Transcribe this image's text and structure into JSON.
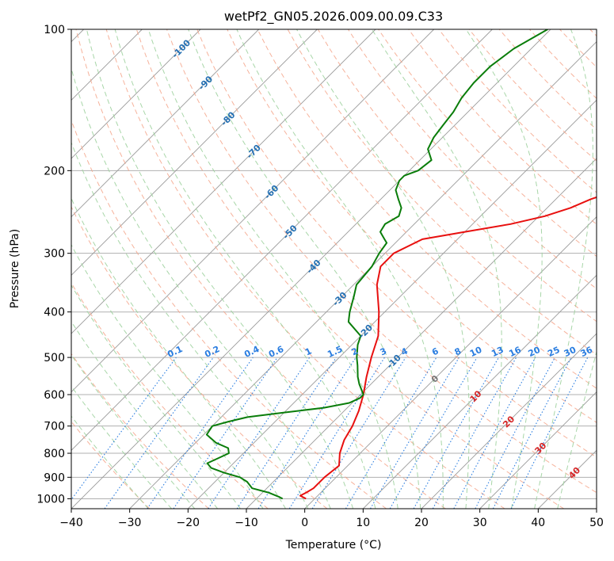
{
  "chart_data": {
    "type": "skew-t",
    "title": "wetPf2_GN05.2026.009.00.09.C33",
    "xlabel": "Temperature (°C)",
    "ylabel": "Pressure (hPa)",
    "xlim": [
      -40,
      50
    ],
    "ylim": [
      1050,
      100
    ],
    "x_ticks": [
      -40,
      -30,
      -20,
      -10,
      0,
      10,
      20,
      30,
      40,
      50
    ],
    "y_ticks": [
      1000,
      900,
      800,
      700,
      600,
      500,
      400,
      300,
      200,
      100
    ],
    "isotherm_labels": [
      -100,
      -90,
      -80,
      -70,
      -60,
      -50,
      -40,
      -30,
      -20,
      -10,
      0,
      10,
      20,
      30,
      40
    ],
    "mixing_ratio_labels": [
      "0.1",
      "0.2",
      "0.4",
      "0.6",
      "1",
      "1.5",
      "2",
      "3",
      "4",
      "6",
      "8",
      "10",
      "13",
      "16",
      "20",
      "25",
      "30",
      "36"
    ],
    "colors": {
      "temperature": "#e8100f",
      "dewpoint": "#0a7d0a",
      "isotherm": "#9a9a9a",
      "dry_adiabat": "#f4a58a",
      "moist_adiabat": "#9fd19f",
      "mixing_ratio": "#2a7de0",
      "isotherm_label_cold": "#2570b3",
      "isotherm_label_warm": "#d62728",
      "isotherm_label_zero": "#777777"
    },
    "series": [
      {
        "name": "Temperature",
        "points": [
          [
            1000,
            -1.5
          ],
          [
            985,
            -3.0
          ],
          [
            970,
            -2.5
          ],
          [
            950,
            -2.0
          ],
          [
            900,
            -2.0
          ],
          [
            850,
            -1.5
          ],
          [
            800,
            -3.5
          ],
          [
            750,
            -5.0
          ],
          [
            700,
            -6.0
          ],
          [
            650,
            -7.5
          ],
          [
            600,
            -9.5
          ],
          [
            550,
            -12.0
          ],
          [
            500,
            -14.5
          ],
          [
            450,
            -17.0
          ],
          [
            400,
            -21.0
          ],
          [
            350,
            -26.0
          ],
          [
            320,
            -28.5
          ],
          [
            300,
            -28.5
          ],
          [
            280,
            -26.0
          ],
          [
            270,
            -20.0
          ],
          [
            260,
            -13.5
          ],
          [
            250,
            -9.0
          ],
          [
            240,
            -6.0
          ],
          [
            230,
            -4.0
          ],
          [
            220,
            -1.0
          ],
          [
            210,
            3.0
          ],
          [
            200,
            6.0
          ],
          [
            190,
            9.0
          ],
          [
            180,
            12.0
          ],
          [
            170,
            14.0
          ],
          [
            160,
            17.0
          ],
          [
            150,
            20.0
          ],
          [
            140,
            23.0
          ],
          [
            130,
            27.0
          ],
          [
            120,
            30.0
          ],
          [
            110,
            33.0
          ],
          [
            100,
            34.0
          ]
        ]
      },
      {
        "name": "Dewpoint",
        "points": [
          [
            1000,
            -5.5
          ],
          [
            990,
            -6.5
          ],
          [
            970,
            -9.0
          ],
          [
            950,
            -12.5
          ],
          [
            920,
            -14.5
          ],
          [
            900,
            -16.5
          ],
          [
            880,
            -20.0
          ],
          [
            860,
            -23.0
          ],
          [
            840,
            -24.5
          ],
          [
            820,
            -23.5
          ],
          [
            800,
            -22.5
          ],
          [
            780,
            -23.5
          ],
          [
            760,
            -26.5
          ],
          [
            730,
            -29.5
          ],
          [
            700,
            -30.0
          ],
          [
            685,
            -28.0
          ],
          [
            670,
            -25.5
          ],
          [
            655,
            -20.0
          ],
          [
            640,
            -14.0
          ],
          [
            625,
            -10.5
          ],
          [
            610,
            -9.5
          ],
          [
            600,
            -9.5
          ],
          [
            570,
            -12.0
          ],
          [
            550,
            -13.5
          ],
          [
            520,
            -15.5
          ],
          [
            500,
            -17.0
          ],
          [
            470,
            -19.0
          ],
          [
            450,
            -20.0
          ],
          [
            420,
            -24.5
          ],
          [
            400,
            -26.0
          ],
          [
            370,
            -28.0
          ],
          [
            350,
            -29.5
          ],
          [
            320,
            -30.0
          ],
          [
            300,
            -31.0
          ],
          [
            285,
            -31.5
          ],
          [
            280,
            -32.5
          ],
          [
            270,
            -34.5
          ],
          [
            260,
            -35.0
          ],
          [
            250,
            -34.0
          ],
          [
            240,
            -35.0
          ],
          [
            230,
            -37.0
          ],
          [
            220,
            -39.0
          ],
          [
            210,
            -40.0
          ],
          [
            205,
            -40.0
          ],
          [
            200,
            -38.5
          ],
          [
            190,
            -38.0
          ],
          [
            180,
            -40.5
          ],
          [
            170,
            -41.5
          ],
          [
            160,
            -42.0
          ],
          [
            150,
            -42.5
          ],
          [
            140,
            -43.5
          ],
          [
            130,
            -44.0
          ],
          [
            120,
            -44.0
          ],
          [
            110,
            -43.0
          ],
          [
            100,
            -40.5
          ]
        ]
      }
    ]
  }
}
